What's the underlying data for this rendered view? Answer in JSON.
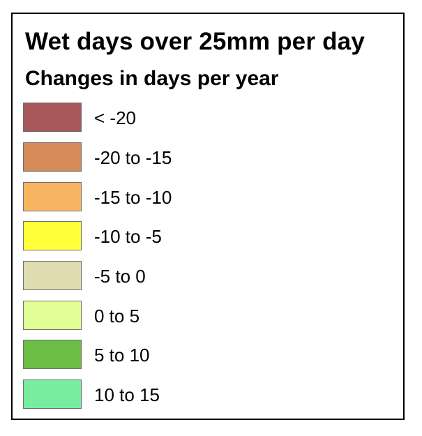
{
  "legend": {
    "title": "Wet days over 25mm per day",
    "subtitle": "Changes in days per year",
    "items": [
      {
        "label": "< -20",
        "color": "#a8585a"
      },
      {
        "label": "-20 to -15",
        "color": "#d68a59"
      },
      {
        "label": "-15 to -10",
        "color": "#f7b562"
      },
      {
        "label": "-10 to -5",
        "color": "#ffff3a"
      },
      {
        "label": "-5 to 0",
        "color": "#e0dcb1"
      },
      {
        "label": "0 to 5",
        "color": "#e2ff96"
      },
      {
        "label": "5 to 10",
        "color": "#6cbe44"
      },
      {
        "label": "10 to 15",
        "color": "#78ec9f"
      }
    ]
  }
}
